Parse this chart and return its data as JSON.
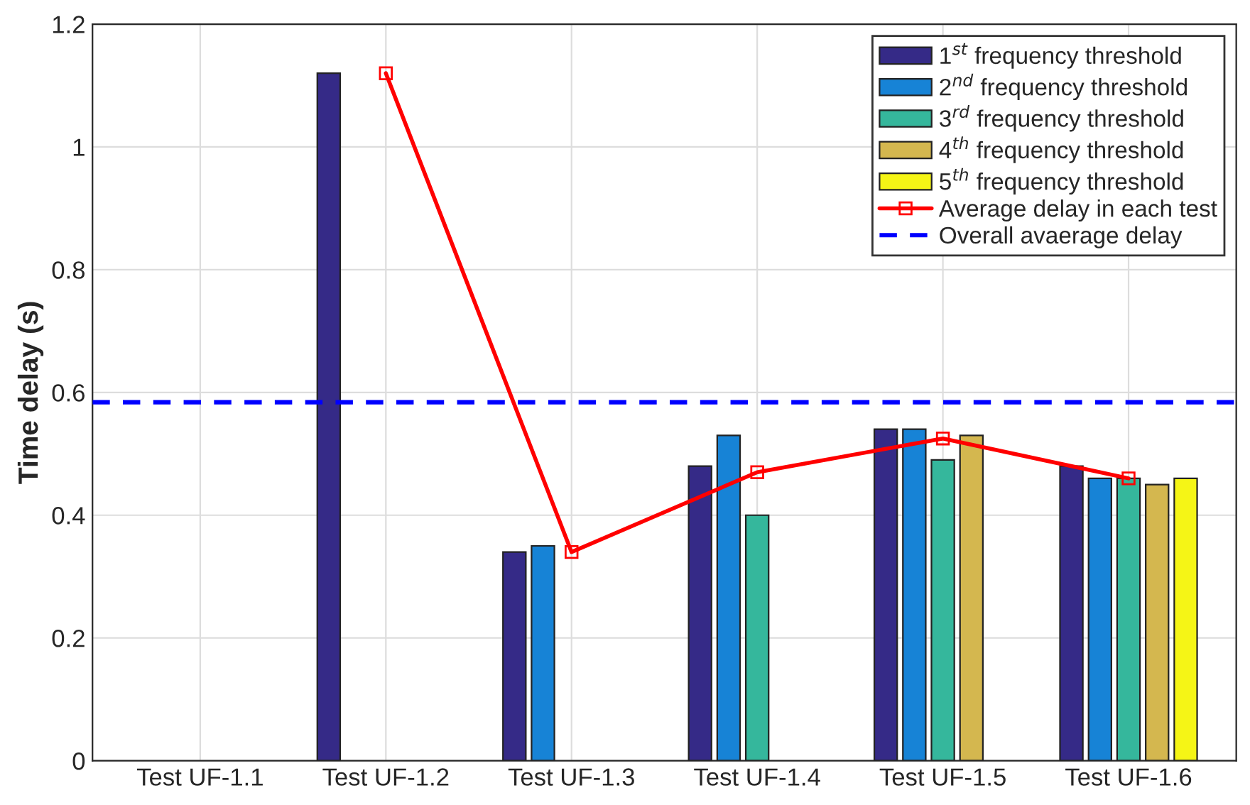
{
  "chart_data": {
    "type": "bar",
    "ylabel": "Time delay (s)",
    "categories": [
      "Test UF-1.1",
      "Test UF-1.2",
      "Test UF-1.3",
      "Test UF-1.4",
      "Test UF-1.5",
      "Test UF-1.6"
    ],
    "series": [
      {
        "name": "1$^{st}$ frequency threshold",
        "color": "#352a87",
        "values": [
          null,
          1.12,
          0.34,
          0.48,
          0.54,
          0.48
        ]
      },
      {
        "name": "2$^{nd}$ frequency threshold",
        "color": "#1783d6",
        "values": [
          null,
          null,
          0.35,
          0.53,
          0.54,
          0.46
        ]
      },
      {
        "name": "3$^{rd}$ frequency threshold",
        "color": "#35b79c",
        "values": [
          null,
          null,
          null,
          0.4,
          0.49,
          0.46
        ]
      },
      {
        "name": "4$^{th}$ frequency threshold",
        "color": "#d4b74f",
        "values": [
          null,
          null,
          null,
          null,
          0.53,
          0.45
        ]
      },
      {
        "name": "5$^{th}$ frequency threshold",
        "color": "#f5f516",
        "values": [
          null,
          null,
          null,
          null,
          null,
          0.46
        ]
      },
      {
        "name": "Average delay in each test",
        "type": "line",
        "color": "#ff0000",
        "marker": "square",
        "line_style": "solid",
        "values": [
          null,
          1.12,
          0.34,
          0.47,
          0.525,
          0.46
        ]
      }
    ],
    "ref_lines": [
      {
        "axis": "y",
        "value": 0.584,
        "label": "Overall avaerage delay",
        "color": "#0000ff",
        "line_style": "dashed"
      }
    ],
    "ylim": [
      0,
      1.2
    ],
    "yticks": [
      0,
      0.2,
      0.4,
      0.6,
      0.8,
      1,
      1.2
    ],
    "grid": true,
    "legend": "top right"
  }
}
